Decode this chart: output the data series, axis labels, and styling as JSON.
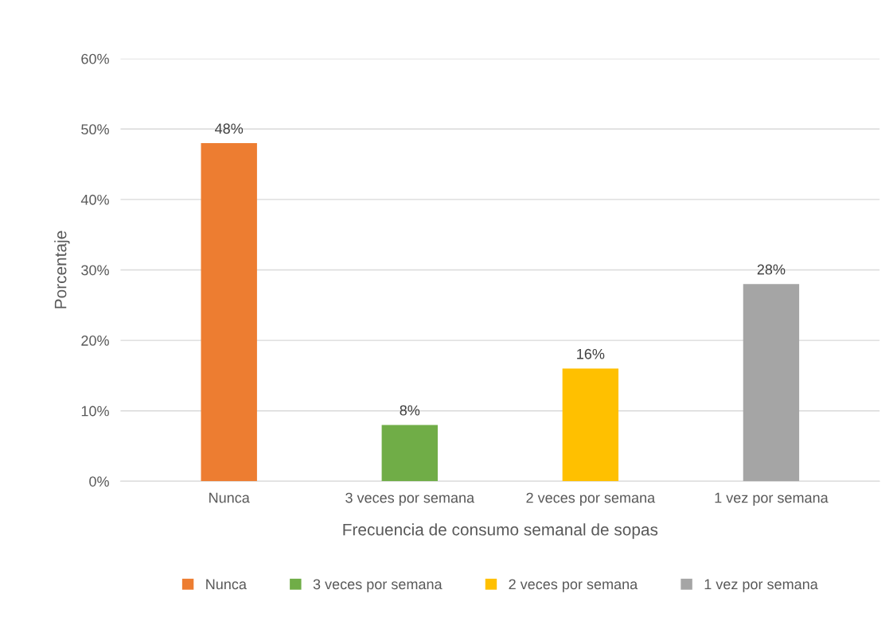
{
  "chart_data": {
    "type": "bar",
    "xlabel": "Frecuencia de consumo semanal de sopas",
    "ylabel": "Porcentaje",
    "categories": [
      "Nunca",
      "3 veces por semana",
      "2 veces por semana",
      "1 vez por semana"
    ],
    "series": [
      {
        "name": "Nunca",
        "color": "#ed7d31",
        "values": [
          48,
          null,
          null,
          null
        ],
        "value_labels": [
          "48%",
          null,
          null,
          null
        ]
      },
      {
        "name": "3 veces por semana",
        "color": "#70ad47",
        "values": [
          null,
          8,
          null,
          null
        ],
        "value_labels": [
          null,
          "8%",
          null,
          null
        ]
      },
      {
        "name": "2 veces por semana",
        "color": "#ffc000",
        "values": [
          null,
          null,
          16,
          null
        ],
        "value_labels": [
          null,
          null,
          "16%",
          null
        ]
      },
      {
        "name": "1 vez por semana",
        "color": "#a5a5a5",
        "values": [
          null,
          null,
          null,
          28
        ],
        "value_labels": [
          null,
          null,
          null,
          "28%"
        ]
      }
    ],
    "ylim": [
      0,
      60
    ],
    "yticks": [
      {
        "value": 0,
        "label": "0%"
      },
      {
        "value": 10,
        "label": "10%"
      },
      {
        "value": 20,
        "label": "20%"
      },
      {
        "value": 30,
        "label": "30%"
      },
      {
        "value": 40,
        "label": "40%"
      },
      {
        "value": 50,
        "label": "50%"
      },
      {
        "value": 60,
        "label": "60%"
      }
    ],
    "grid": "y",
    "legend": "bottom"
  }
}
